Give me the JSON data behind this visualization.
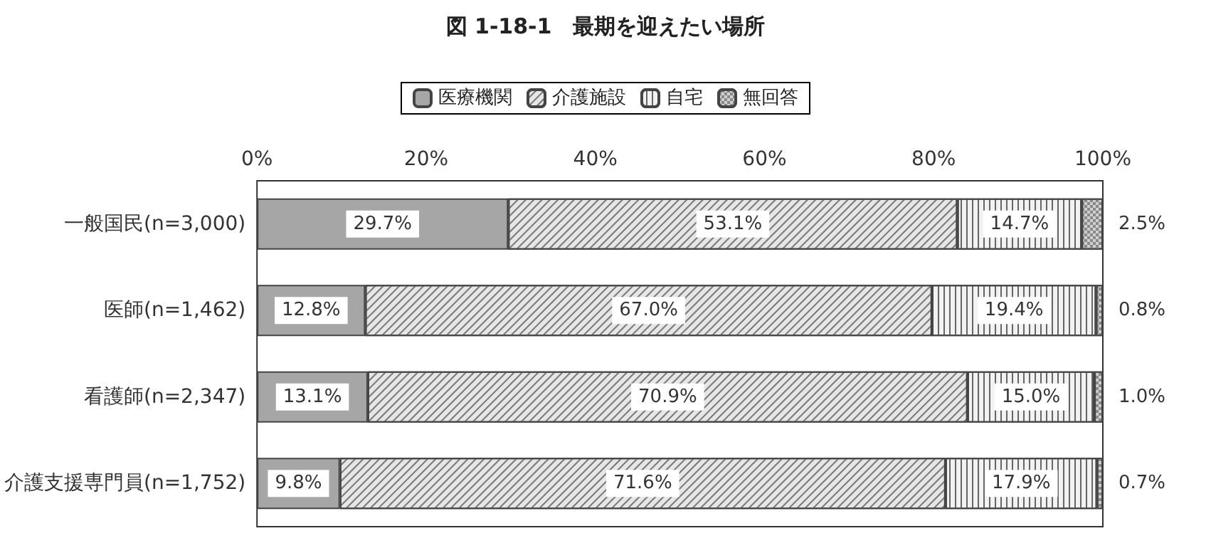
{
  "chart_data": {
    "type": "bar",
    "orientation": "horizontal",
    "stacked": true,
    "title": "図 1-18-1　最期を迎えたい場所",
    "categories": [
      "一般国民(n=3,000)",
      "医師(n=1,462)",
      "看護師(n=2,347)",
      "介護支援専門員(n=1,752)"
    ],
    "series": [
      {
        "name": "医療機関",
        "color": "#a6a6a6",
        "values": [
          29.7,
          12.8,
          13.1,
          9.8
        ]
      },
      {
        "name": "介護施設",
        "color": "#e6e6e6",
        "values": [
          53.1,
          67.0,
          70.9,
          71.6
        ]
      },
      {
        "name": "自宅",
        "color": "#f2f2f2",
        "values": [
          14.7,
          19.4,
          15.0,
          17.9
        ]
      },
      {
        "name": "無回答",
        "color": "#d0d0d0",
        "values": [
          2.5,
          0.8,
          1.0,
          0.7
        ]
      }
    ],
    "value_labels": [
      [
        "29.7%",
        "12.8%",
        "13.1%",
        "9.8%"
      ],
      [
        "53.1%",
        "67.0%",
        "70.9%",
        "71.6%"
      ],
      [
        "14.7%",
        "19.4%",
        "15.0%",
        "17.9%"
      ],
      [
        "2.5%",
        "0.8%",
        "1.0%",
        "0.7%"
      ]
    ],
    "xlim": [
      0,
      100
    ],
    "xticks": [
      {
        "value": 0,
        "label": "0%"
      },
      {
        "value": 20,
        "label": "20%"
      },
      {
        "value": 40,
        "label": "40%"
      },
      {
        "value": 60,
        "label": "60%"
      },
      {
        "value": 80,
        "label": "80%"
      },
      {
        "value": 100,
        "label": "100%"
      }
    ],
    "legend": "top",
    "grid": false
  }
}
